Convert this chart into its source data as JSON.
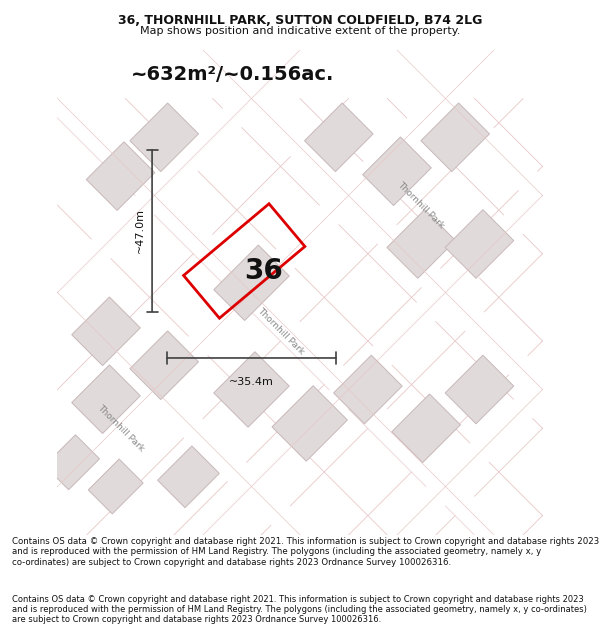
{
  "title_line1": "36, THORNHILL PARK, SUTTON COLDFIELD, B74 2LG",
  "title_line2": "Map shows position and indicative extent of the property.",
  "area_text": "~632m²/~0.156ac.",
  "label_36": "36",
  "dim_height": "~47.0m",
  "dim_width": "~35.4m",
  "footer_text": "Contains OS data © Crown copyright and database right 2021. This information is subject to Crown copyright and database rights 2023 and is reproduced with the permission of HM Land Registry. The polygons (including the associated geometry, namely x, y co-ordinates) are subject to Crown copyright and database rights 2023 Ordnance Survey 100026316.",
  "bg_color": "#f5f0f0",
  "map_bg": "#f5f0f0",
  "road_color": "#ffffff",
  "building_color": "#e0dada",
  "building_outline": "#c8b8b8",
  "plot_outline_color": "#dd0000",
  "road_line_color": "#e8c8c8",
  "dim_line_color": "#404040",
  "text_color": "#111111",
  "street_label_color": "#888888"
}
